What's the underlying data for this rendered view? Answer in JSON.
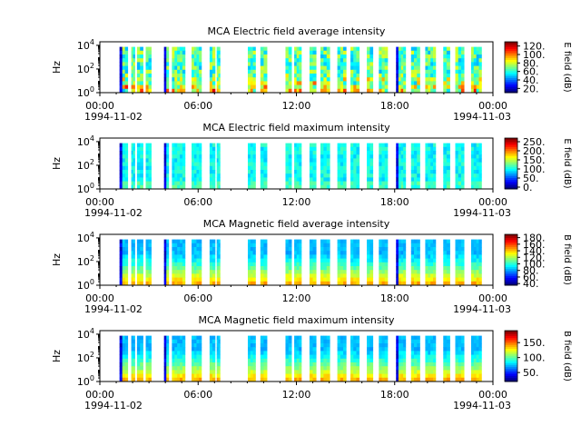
{
  "figure": {
    "x_tick_labels": [
      "00:00",
      "06:00",
      "12:00",
      "18:00",
      "00:00"
    ],
    "x_date_left": "1994-11-02",
    "x_date_right": "1994-11-03"
  },
  "chart_data": [
    {
      "type": "heatmap",
      "title": "MCA  Electric field average intensity",
      "ylabel": "Hz",
      "xlim": [
        "1994-11-02 00:00",
        "1994-11-03 00:00"
      ],
      "y_scale": "log",
      "y_ticks": [
        {
          "b": "10",
          "e": "0"
        },
        {
          "b": "10",
          "e": "2"
        },
        {
          "b": "10",
          "e": "4"
        }
      ],
      "colorbar": {
        "label": "E field (dB)",
        "ticks": [
          "20.",
          "40.",
          "60.",
          "80.",
          "100.",
          "120."
        ],
        "range": [
          10,
          130
        ]
      },
      "base_level": 80
    },
    {
      "type": "heatmap",
      "title": "MCA  Electric field maximum intensity",
      "ylabel": "Hz",
      "xlim": [
        "1994-11-02 00:00",
        "1994-11-03 00:00"
      ],
      "y_scale": "log",
      "y_ticks": [
        {
          "b": "10",
          "e": "0"
        },
        {
          "b": "10",
          "e": "2"
        },
        {
          "b": "10",
          "e": "4"
        }
      ],
      "colorbar": {
        "label": "E field (dB)",
        "ticks": [
          "0.",
          "50.",
          "100.",
          "150.",
          "200.",
          "250."
        ],
        "range": [
          -10,
          270
        ]
      },
      "base_level": 90
    },
    {
      "type": "heatmap",
      "title": "MCA  Magnetic field average intensity",
      "ylabel": "Hz",
      "xlim": [
        "1994-11-02 00:00",
        "1994-11-03 00:00"
      ],
      "y_scale": "log",
      "y_ticks": [
        {
          "b": "10",
          "e": "0"
        },
        {
          "b": "10",
          "e": "2"
        },
        {
          "b": "10",
          "e": "4"
        }
      ],
      "colorbar": {
        "label": "B field (dB)",
        "ticks": [
          "40.",
          "60.",
          "80.",
          "100.",
          "120.",
          "140.",
          "160.",
          "180."
        ],
        "range": [
          35,
          190
        ]
      },
      "base_level": 100
    },
    {
      "type": "heatmap",
      "title": "MCA  Magnetic field maximum intensity",
      "ylabel": "Hz",
      "xlim": [
        "1994-11-02 00:00",
        "1994-11-03 00:00"
      ],
      "y_scale": "log",
      "y_ticks": [
        {
          "b": "10",
          "e": "0"
        },
        {
          "b": "10",
          "e": "2"
        },
        {
          "b": "10",
          "e": "4"
        }
      ],
      "colorbar": {
        "label": "B field (dB)",
        "ticks": [
          "50.",
          "100.",
          "150."
        ],
        "range": [
          20,
          190
        ]
      },
      "base_level": 100
    }
  ],
  "data_segments_utc": [
    [
      "01:12",
      "01:42"
    ],
    [
      "01:55",
      "02:08"
    ],
    [
      "02:16",
      "02:38"
    ],
    [
      "02:48",
      "03:08"
    ],
    [
      "03:55",
      "04:12"
    ],
    [
      "04:24",
      "05:12"
    ],
    [
      "05:36",
      "06:12"
    ],
    [
      "06:42",
      "07:02"
    ],
    [
      "07:08",
      "07:20"
    ],
    [
      "09:02",
      "09:30"
    ],
    [
      "09:48",
      "10:12"
    ],
    [
      "11:20",
      "11:42"
    ],
    [
      "11:52",
      "12:18"
    ],
    [
      "12:48",
      "13:12"
    ],
    [
      "13:28",
      "14:02"
    ],
    [
      "14:30",
      "15:02"
    ],
    [
      "15:18",
      "15:50"
    ],
    [
      "16:18",
      "16:40"
    ],
    [
      "17:02",
      "17:34"
    ],
    [
      "18:05",
      "18:40"
    ],
    [
      "19:00",
      "19:32"
    ],
    [
      "19:52",
      "20:30"
    ],
    [
      "20:58",
      "21:22"
    ],
    [
      "21:42",
      "22:14"
    ],
    [
      "22:40",
      "23:18"
    ]
  ]
}
